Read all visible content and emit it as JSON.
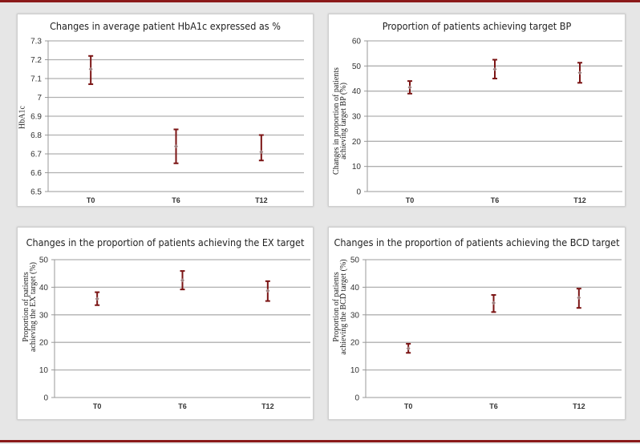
{
  "chart_data": [
    {
      "type": "scatter",
      "title": "Changes in average patient HbA1c expressed as %",
      "xlabel": "",
      "ylabel": "HbA1c",
      "categories": [
        "T0",
        "T6",
        "T12"
      ],
      "values": [
        7.15,
        6.74,
        6.71
      ],
      "error_low": [
        7.07,
        6.65,
        6.665
      ],
      "error_high": [
        7.22,
        6.83,
        6.8
      ],
      "ylim": [
        6.5,
        7.3
      ],
      "yticks": [
        "6.5",
        "6.6",
        "6.7",
        "6.8",
        "6.9",
        "7",
        "7.1",
        "7.2",
        "7.3"
      ],
      "grid": true,
      "error_bar_color": "#7b1414",
      "marker_color": "#a08080"
    },
    {
      "type": "scatter",
      "title": "Proportion of patients achieving target BP",
      "xlabel": "",
      "ylabel": "Changes in proportion of patients\nachieving target BP (%)",
      "categories": [
        "T0",
        "T6",
        "T12"
      ],
      "values": [
        41.5,
        48.7,
        47.3
      ],
      "error_low": [
        39.0,
        45.0,
        43.3
      ],
      "error_high": [
        44.0,
        52.5,
        51.3
      ],
      "ylim": [
        0,
        60
      ],
      "yticks": [
        "0",
        "10",
        "20",
        "30",
        "40",
        "50",
        "60"
      ],
      "grid": true,
      "error_bar_color": "#7b1414",
      "marker_color": "#a08080"
    },
    {
      "type": "scatter",
      "title": "Changes in the proportion of patients achieving the EX target",
      "xlabel": "",
      "ylabel": "Proportion of patients\nachieving the EX target (%)",
      "categories": [
        "T0",
        "T6",
        "T12"
      ],
      "values": [
        35.8,
        42.5,
        38.7
      ],
      "error_low": [
        33.5,
        39.2,
        35.0
      ],
      "error_high": [
        38.2,
        45.9,
        42.2
      ],
      "ylim": [
        0,
        50
      ],
      "yticks": [
        "0",
        "10",
        "20",
        "30",
        "40",
        "50"
      ],
      "grid": true,
      "error_bar_color": "#7b1414",
      "marker_color": "#a08080"
    },
    {
      "type": "scatter",
      "title": "Changes in the proportion of patients achieving the BCD target",
      "xlabel": "",
      "ylabel": "Proportion of patients\nachieving the BCD target (%)",
      "categories": [
        "T0",
        "T6",
        "T12"
      ],
      "values": [
        17.8,
        34.3,
        36.2
      ],
      "error_low": [
        16.2,
        31.0,
        32.5
      ],
      "error_high": [
        19.5,
        37.2,
        39.5
      ],
      "ylim": [
        0,
        50
      ],
      "yticks": [
        "0",
        "10",
        "20",
        "30",
        "40",
        "50"
      ],
      "grid": true,
      "error_bar_color": "#7b1414",
      "marker_color": "#a08080"
    }
  ]
}
